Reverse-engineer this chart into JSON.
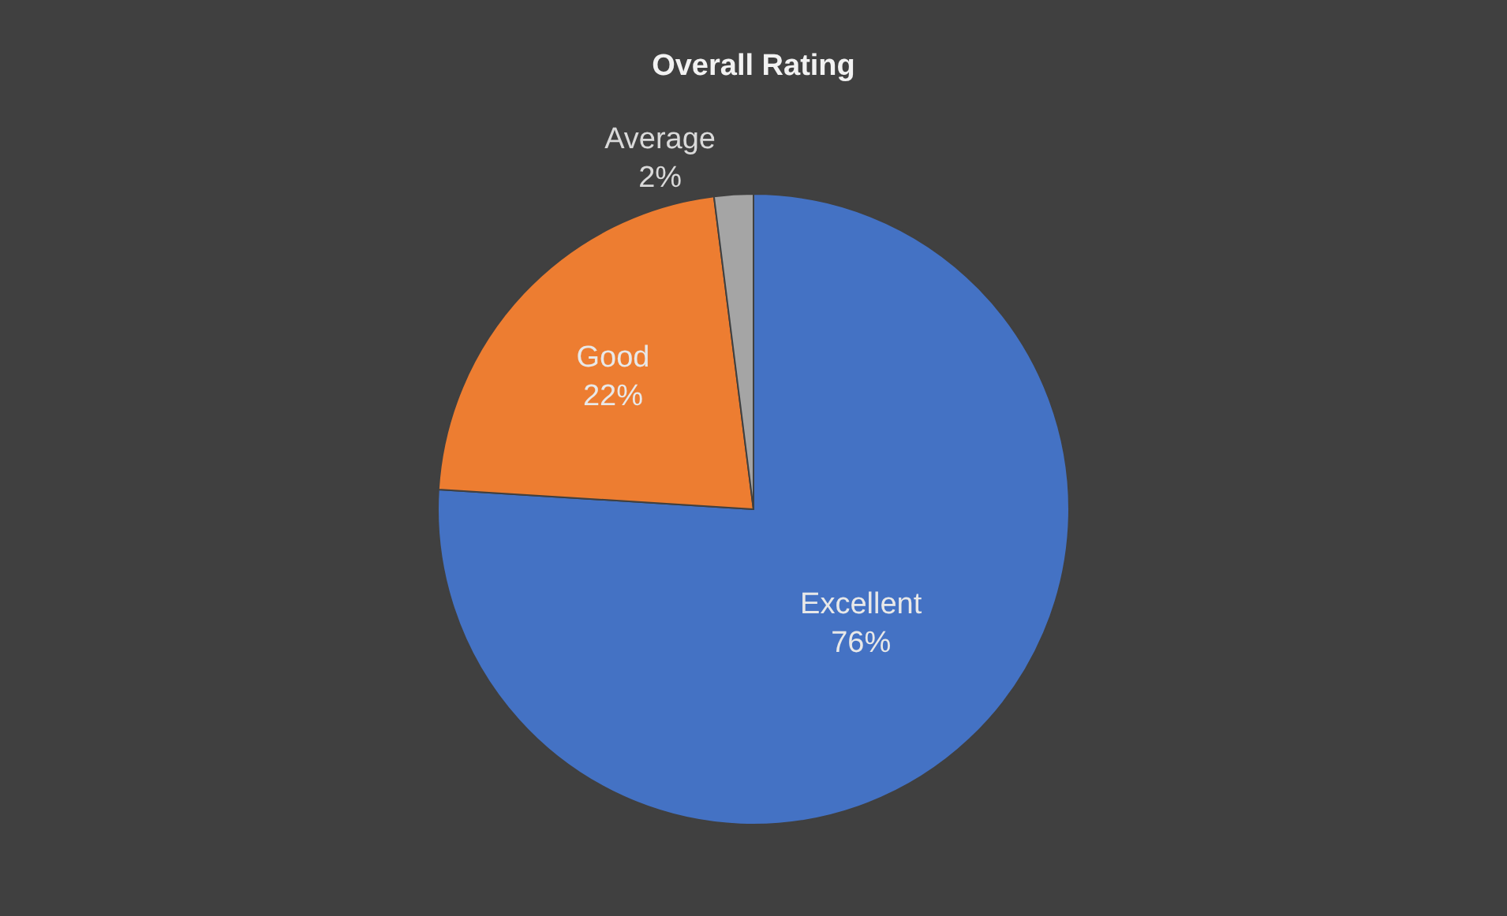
{
  "chart_data": {
    "type": "pie",
    "title": "Overall Rating",
    "categories": [
      "Excellent",
      "Good",
      "Average"
    ],
    "values": [
      76,
      22,
      2
    ],
    "colors": [
      "#4472c4",
      "#ed7d31",
      "#a5a5a5"
    ],
    "value_labels": [
      "76%",
      "22%",
      "2%"
    ],
    "legend": false
  }
}
